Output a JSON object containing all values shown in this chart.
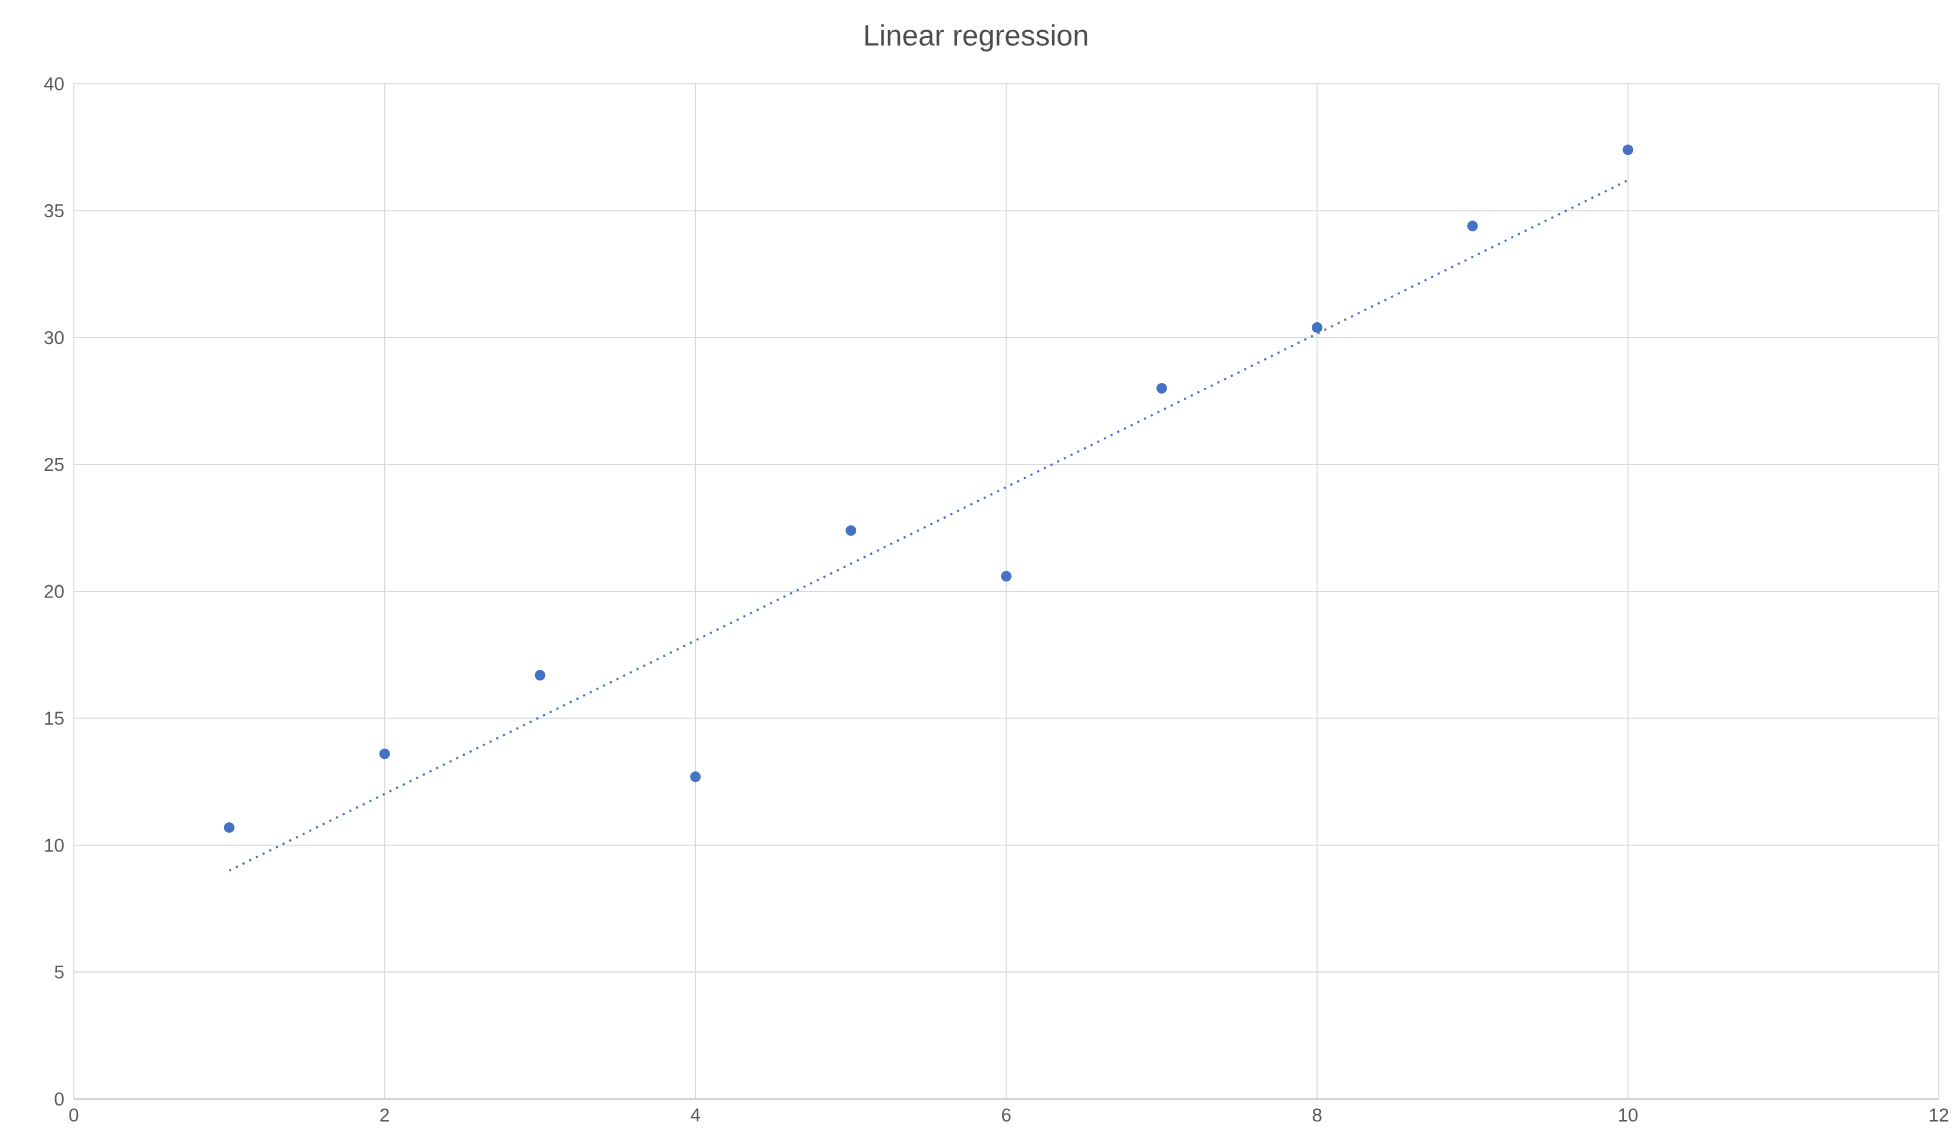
{
  "chart_data": {
    "type": "scatter",
    "title": "Linear regression",
    "xlim": [
      0,
      12
    ],
    "ylim": [
      0,
      40
    ],
    "xticks": [
      0,
      2,
      4,
      6,
      8,
      10,
      12
    ],
    "yticks": [
      0,
      5,
      10,
      15,
      20,
      25,
      30,
      35,
      40
    ],
    "grid": true,
    "series": [
      {
        "type": "scatter",
        "color": "#4472c4",
        "marker": "circle",
        "x": [
          1,
          2,
          3,
          4,
          5,
          6,
          7,
          8,
          9,
          10
        ],
        "values": [
          10.7,
          13.6,
          16.7,
          12.7,
          22.4,
          20.6,
          28.0,
          30.4,
          34.4,
          37.4
        ]
      },
      {
        "type": "line",
        "color": "#4472c4",
        "marker": "none",
        "line_style": "dotted",
        "x": [
          1,
          10
        ],
        "values": [
          9.0,
          36.2
        ]
      }
    ]
  }
}
